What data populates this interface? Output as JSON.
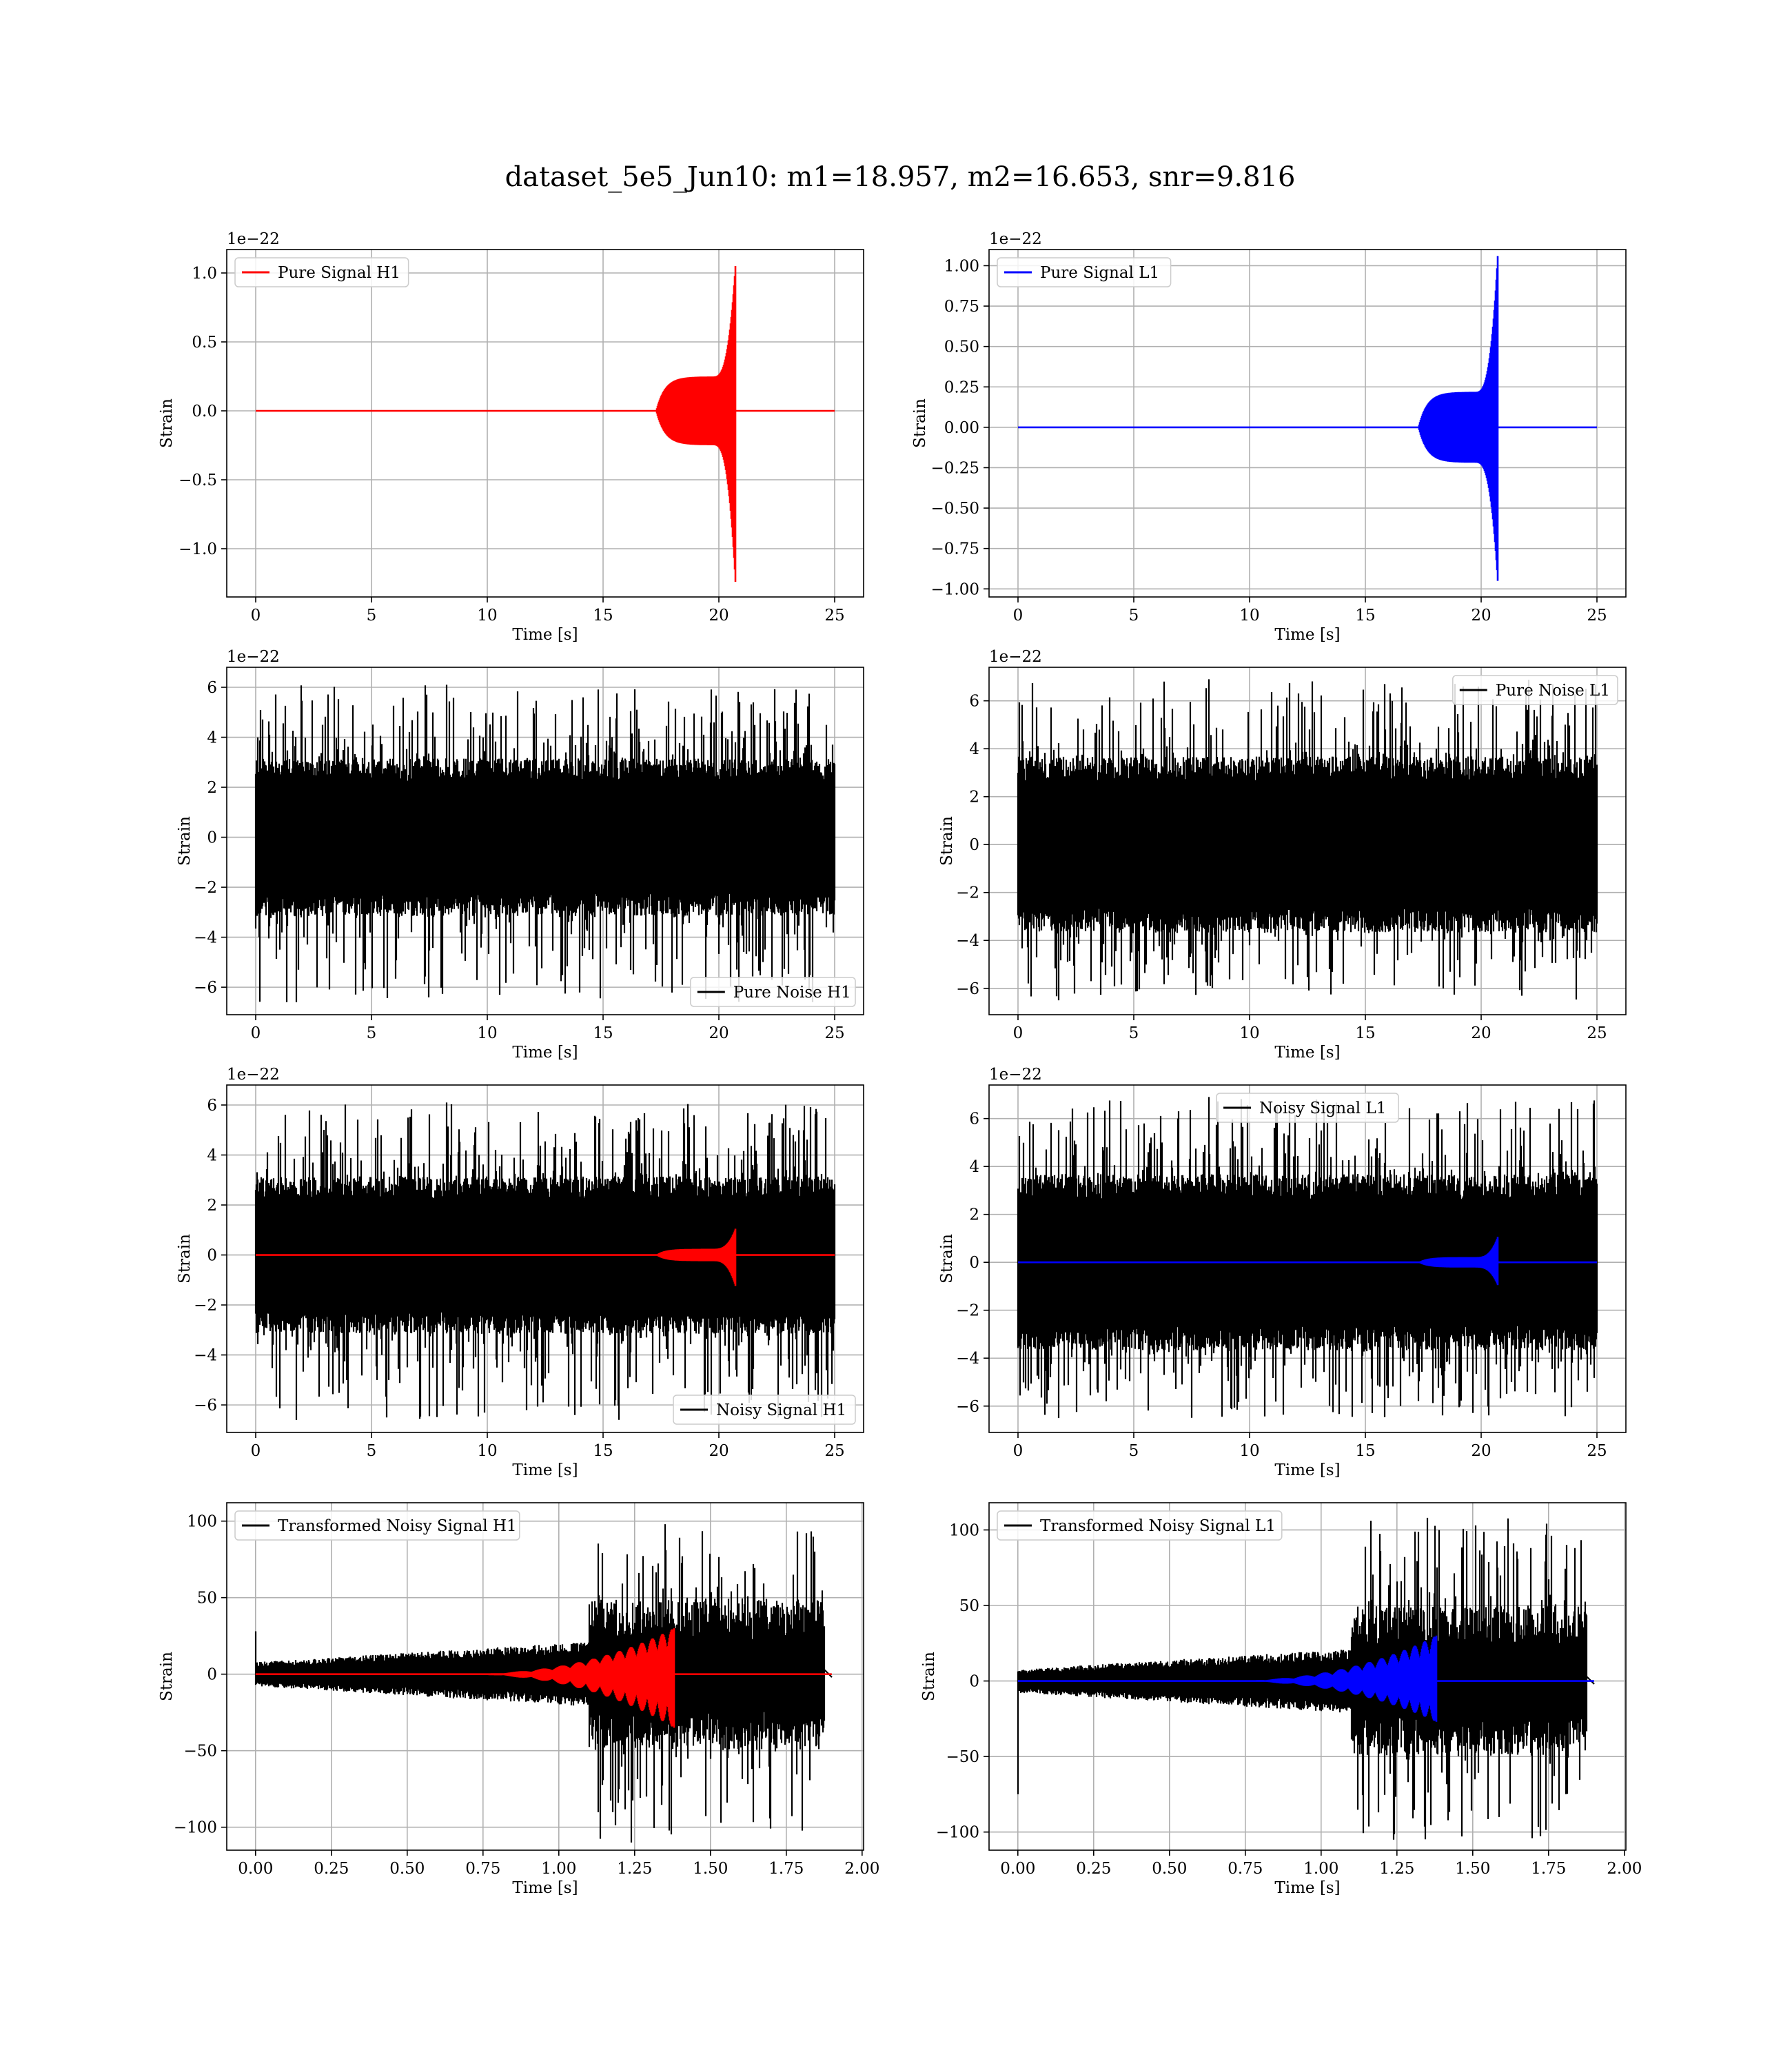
{
  "figure": {
    "suptitle": "dataset_5e5_Jun10: m1=18.957, m2=16.653, snr=9.816"
  },
  "colors": {
    "h1_signal": "#ff0000",
    "l1_signal": "#0000ff",
    "noise": "#000000",
    "grid": "#b0b0b0"
  },
  "chart_data": [
    {
      "id": "pure-signal-h1",
      "type": "line",
      "xlabel": "Time [s]",
      "ylabel": "Strain",
      "offset_text": "1e−22",
      "xlim": [
        -1.25,
        26.25
      ],
      "ylim": [
        -1.35,
        1.17
      ],
      "xticks": [
        0,
        5,
        10,
        15,
        20,
        25
      ],
      "xtick_labels": [
        "0",
        "5",
        "10",
        "15",
        "20",
        "25"
      ],
      "yticks": [
        -1.0,
        -0.5,
        0.0,
        0.5,
        1.0
      ],
      "ytick_labels": [
        "−1.0",
        "−0.5",
        "0.0",
        "0.5",
        "1.0"
      ],
      "grid": true,
      "legend_position": "upper-left",
      "series": [
        {
          "name": "Pure Signal H1",
          "color": "#ff0000",
          "kind": "chirp",
          "t_start": 0,
          "t_end": 25,
          "onset": 17.3,
          "plateau": 0.25,
          "peak_time": 20.7,
          "peak_max": 1.05,
          "peak_min": -1.24
        }
      ]
    },
    {
      "id": "pure-signal-l1",
      "type": "line",
      "xlabel": "Time [s]",
      "ylabel": "Strain",
      "offset_text": "1e−22",
      "xlim": [
        -1.25,
        26.25
      ],
      "ylim": [
        -1.05,
        1.1
      ],
      "xticks": [
        0,
        5,
        10,
        15,
        20,
        25
      ],
      "xtick_labels": [
        "0",
        "5",
        "10",
        "15",
        "20",
        "25"
      ],
      "yticks": [
        -1.0,
        -0.75,
        -0.5,
        -0.25,
        0.0,
        0.25,
        0.5,
        0.75,
        1.0
      ],
      "ytick_labels": [
        "−1.00",
        "−0.75",
        "−0.50",
        "−0.25",
        "0.00",
        "0.25",
        "0.50",
        "0.75",
        "1.00"
      ],
      "grid": true,
      "legend_position": "upper-left",
      "series": [
        {
          "name": "Pure Signal L1",
          "color": "#0000ff",
          "kind": "chirp",
          "t_start": 0,
          "t_end": 25,
          "onset": 17.3,
          "plateau": 0.22,
          "peak_time": 20.7,
          "peak_max": 1.06,
          "peak_min": -0.95
        }
      ]
    },
    {
      "id": "pure-noise-h1",
      "type": "line",
      "xlabel": "Time [s]",
      "ylabel": "Strain",
      "offset_text": "1e−22",
      "xlim": [
        -1.25,
        26.25
      ],
      "ylim": [
        -7.1,
        6.8
      ],
      "xticks": [
        0,
        5,
        10,
        15,
        20,
        25
      ],
      "xtick_labels": [
        "0",
        "5",
        "10",
        "15",
        "20",
        "25"
      ],
      "yticks": [
        -6,
        -4,
        -2,
        0,
        2,
        4,
        6
      ],
      "ytick_labels": [
        "−6",
        "−4",
        "−2",
        "0",
        "2",
        "4",
        "6"
      ],
      "grid": true,
      "legend_position": "lower-right",
      "series": [
        {
          "name": "Pure Noise H1",
          "color": "#000000",
          "kind": "noise",
          "t_start": 0,
          "t_end": 25,
          "band": 3.0,
          "peak_max": 6.1,
          "peak_min": -6.6
        }
      ]
    },
    {
      "id": "pure-noise-l1",
      "type": "line",
      "xlabel": "Time [s]",
      "ylabel": "Strain",
      "offset_text": "1e−22",
      "xlim": [
        -1.25,
        26.25
      ],
      "ylim": [
        -7.1,
        7.4
      ],
      "xticks": [
        0,
        5,
        10,
        15,
        20,
        25
      ],
      "xtick_labels": [
        "0",
        "5",
        "10",
        "15",
        "20",
        "25"
      ],
      "yticks": [
        -6,
        -4,
        -2,
        0,
        2,
        4,
        6
      ],
      "ytick_labels": [
        "−6",
        "−4",
        "−2",
        "0",
        "2",
        "4",
        "6"
      ],
      "grid": true,
      "legend_position": "upper-right",
      "series": [
        {
          "name": "Pure Noise L1",
          "color": "#000000",
          "kind": "noise",
          "t_start": 0,
          "t_end": 25,
          "band": 3.5,
          "peak_max": 6.9,
          "peak_min": -6.5
        }
      ]
    },
    {
      "id": "noisy-signal-h1",
      "type": "line",
      "xlabel": "Time [s]",
      "ylabel": "Strain",
      "offset_text": "1e−22",
      "xlim": [
        -1.25,
        26.25
      ],
      "ylim": [
        -7.1,
        6.8
      ],
      "xticks": [
        0,
        5,
        10,
        15,
        20,
        25
      ],
      "xtick_labels": [
        "0",
        "5",
        "10",
        "15",
        "20",
        "25"
      ],
      "yticks": [
        -6,
        -4,
        -2,
        0,
        2,
        4,
        6
      ],
      "ytick_labels": [
        "−6",
        "−4",
        "−2",
        "0",
        "2",
        "4",
        "6"
      ],
      "grid": true,
      "legend_position": "lower-right",
      "series": [
        {
          "name": "Noisy Signal H1",
          "color": "#000000",
          "kind": "noise",
          "t_start": 0,
          "t_end": 25,
          "band": 3.0,
          "peak_max": 6.1,
          "peak_min": -6.6
        },
        {
          "name": "",
          "color": "#ff0000",
          "kind": "chirp",
          "t_start": 0,
          "t_end": 25,
          "onset": 17.3,
          "plateau": 0.25,
          "peak_time": 20.7,
          "peak_max": 1.05,
          "peak_min": -1.24
        }
      ]
    },
    {
      "id": "noisy-signal-l1",
      "type": "line",
      "xlabel": "Time [s]",
      "ylabel": "Strain",
      "offset_text": "1e−22",
      "xlim": [
        -1.25,
        26.25
      ],
      "ylim": [
        -7.1,
        7.4
      ],
      "xticks": [
        0,
        5,
        10,
        15,
        20,
        25
      ],
      "xtick_labels": [
        "0",
        "5",
        "10",
        "15",
        "20",
        "25"
      ],
      "yticks": [
        -6,
        -4,
        -2,
        0,
        2,
        4,
        6
      ],
      "ytick_labels": [
        "−6",
        "−4",
        "−2",
        "0",
        "2",
        "4",
        "6"
      ],
      "grid": true,
      "legend_position": "upper-center",
      "series": [
        {
          "name": "Noisy Signal L1",
          "color": "#000000",
          "kind": "noise",
          "t_start": 0,
          "t_end": 25,
          "band": 3.5,
          "peak_max": 6.9,
          "peak_min": -6.5
        },
        {
          "name": "",
          "color": "#0000ff",
          "kind": "chirp",
          "t_start": 0,
          "t_end": 25,
          "onset": 17.3,
          "plateau": 0.22,
          "peak_time": 20.7,
          "peak_max": 1.06,
          "peak_min": -0.95
        }
      ]
    },
    {
      "id": "transformed-noisy-signal-h1",
      "type": "line",
      "xlabel": "Time [s]",
      "ylabel": "Strain",
      "offset_text": "",
      "xlim": [
        -0.095,
        2.005
      ],
      "ylim": [
        -115,
        112
      ],
      "xticks": [
        0.0,
        0.25,
        0.5,
        0.75,
        1.0,
        1.25,
        1.5,
        1.75,
        2.0
      ],
      "xtick_labels": [
        "0.00",
        "0.25",
        "0.50",
        "0.75",
        "1.00",
        "1.25",
        "1.50",
        "1.75",
        "2.00"
      ],
      "yticks": [
        -100,
        -50,
        0,
        50,
        100
      ],
      "ytick_labels": [
        "−100",
        "−50",
        "0",
        "50",
        "100"
      ],
      "grid": true,
      "legend_position": "upper-left",
      "series": [
        {
          "name": "Transformed Noisy Signal H1",
          "color": "#000000",
          "kind": "whitened",
          "t_start": 0,
          "t_end": 1.9,
          "jump_time": 1.1,
          "low_band": 7,
          "high_band": 45,
          "peak_max": 98,
          "peak_min": -110,
          "start_spike": 28,
          "end_time": 1.875
        },
        {
          "name": "",
          "color": "#ff0000",
          "kind": "whitened-chirp",
          "t_start": 0,
          "t_end": 1.9,
          "onset": 0.6,
          "peak_time": 1.38,
          "peak_max": 30,
          "peak_min": -35
        }
      ]
    },
    {
      "id": "transformed-noisy-signal-l1",
      "type": "line",
      "xlabel": "Time [s]",
      "ylabel": "Strain",
      "offset_text": "",
      "xlim": [
        -0.095,
        2.005
      ],
      "ylim": [
        -112,
        118
      ],
      "xticks": [
        0.0,
        0.25,
        0.5,
        0.75,
        1.0,
        1.25,
        1.5,
        1.75,
        2.0
      ],
      "xtick_labels": [
        "0.00",
        "0.25",
        "0.50",
        "0.75",
        "1.00",
        "1.25",
        "1.50",
        "1.75",
        "2.00"
      ],
      "yticks": [
        -100,
        -50,
        0,
        50,
        100
      ],
      "ytick_labels": [
        "−100",
        "−50",
        "0",
        "50",
        "100"
      ],
      "grid": true,
      "legend_position": "upper-left",
      "series": [
        {
          "name": "Transformed Noisy Signal L1",
          "color": "#000000",
          "kind": "whitened",
          "t_start": 0,
          "t_end": 1.9,
          "jump_time": 1.1,
          "low_band": 7,
          "high_band": 45,
          "peak_max": 108,
          "peak_min": -105,
          "start_spike": -75,
          "end_time": 1.875
        },
        {
          "name": "",
          "color": "#0000ff",
          "kind": "whitened-chirp",
          "t_start": 0,
          "t_end": 1.9,
          "onset": 0.6,
          "peak_time": 1.38,
          "peak_max": 30,
          "peak_min": -27
        }
      ]
    }
  ]
}
